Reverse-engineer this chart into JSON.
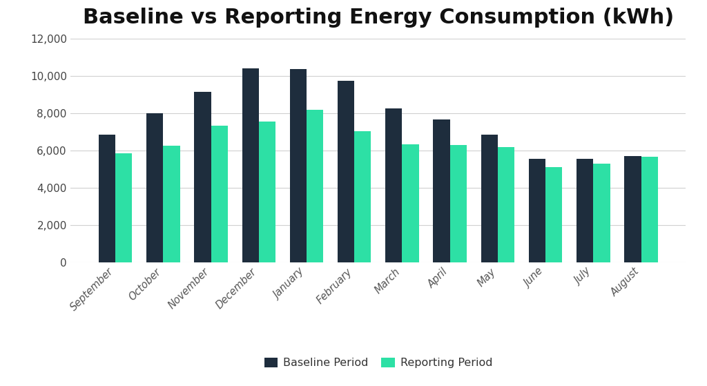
{
  "title": "Baseline vs Reporting Energy Consumption (kWh)",
  "categories": [
    "September",
    "October",
    "November",
    "December",
    "January",
    "February",
    "March",
    "April",
    "May",
    "June",
    "July",
    "August"
  ],
  "baseline": [
    6850,
    8000,
    9150,
    10400,
    10350,
    9750,
    8250,
    7650,
    6850,
    5550,
    5550,
    5700
  ],
  "reporting": [
    5850,
    6250,
    7350,
    7550,
    8200,
    7050,
    6350,
    6300,
    6200,
    5100,
    5300,
    5650
  ],
  "baseline_color": "#1e2d3d",
  "reporting_color": "#2de0a5",
  "background_color": "#ffffff",
  "grid_color": "#d0d0d0",
  "title_fontsize": 22,
  "legend_labels": [
    "Baseline Period",
    "Reporting Period"
  ],
  "ylim": [
    0,
    12000
  ],
  "yticks": [
    0,
    2000,
    4000,
    6000,
    8000,
    10000,
    12000
  ],
  "bar_width": 0.35,
  "figsize": [
    10.24,
    5.59
  ],
  "dpi": 100
}
